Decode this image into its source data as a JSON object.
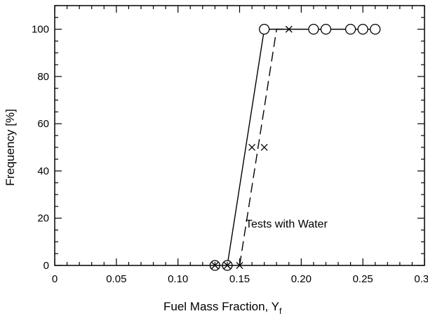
{
  "chart_data": {
    "type": "line",
    "xlabel": "Fuel Mass Fraction, Y",
    "xlabel_subscript": "f",
    "ylabel": "Frequency [%]",
    "xlim": [
      0,
      0.3
    ],
    "ylim": [
      0,
      110
    ],
    "x_ticks": [
      "0",
      "0.05",
      "0.10",
      "0.15",
      "0.20",
      "0.25",
      "0.30"
    ],
    "y_ticks": [
      "0",
      "20",
      "40",
      "60",
      "80",
      "100"
    ],
    "grid": false,
    "annotation": "Tests with Water",
    "series": [
      {
        "marker": "circle",
        "line": "solid",
        "color": "#000000",
        "x": [
          0.13,
          0.14,
          0.17,
          0.21,
          0.22,
          0.24,
          0.25,
          0.26
        ],
        "y": [
          0,
          0,
          100,
          100,
          100,
          100,
          100,
          100
        ]
      },
      {
        "marker": "x",
        "line": "dashed",
        "color": "#000000",
        "x": [
          0.13,
          0.14,
          0.15,
          0.16,
          0.17,
          0.19
        ],
        "y": [
          0,
          0,
          0,
          50,
          50,
          100
        ]
      }
    ],
    "fit_lines": [
      {
        "line": "solid",
        "x": [
          0.14,
          0.17,
          0.26
        ],
        "y": [
          0,
          100,
          100
        ]
      },
      {
        "line": "dashed",
        "x": [
          0.15,
          0.18,
          0.19
        ],
        "y": [
          0,
          100,
          100
        ]
      }
    ]
  }
}
